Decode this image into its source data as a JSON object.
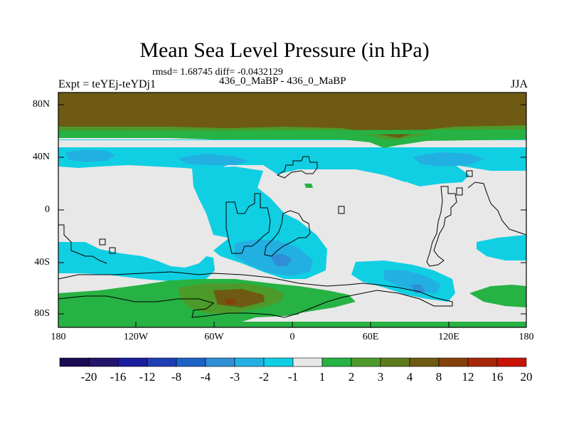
{
  "title": "Mean Sea Level Pressure (in hPa)",
  "stats": "rmsd= 1.68745 diff= -0.0432129",
  "experiment": "Expt = teYEj-teYDj1",
  "subtitle": "436_0_MaBP - 436_0_MaBP",
  "season": "JJA",
  "y_ticks": [
    "80N",
    "40N",
    "0",
    "40S",
    "80S"
  ],
  "x_ticks": [
    "180",
    "120W",
    "60W",
    "0",
    "60E",
    "120E",
    "180"
  ],
  "colorbar": {
    "labels": [
      "-20",
      "-16",
      "-12",
      "-8",
      "-4",
      "-3",
      "-2",
      "-1",
      "1",
      "2",
      "3",
      "4",
      "8",
      "12",
      "16",
      "20"
    ],
    "colors": [
      "#23136b",
      "#1c1c9e",
      "#1f3eb4",
      "#1e62c6",
      "#2f8fd6",
      "#22b0e2",
      "#10cfe3",
      "#e8e8e8",
      "#27b244",
      "#4c9a2a",
      "#5c7a1c",
      "#6e5a12",
      "#86400b",
      "#a72708",
      "#c81406"
    ]
  },
  "legend_colors": {
    "bg": "#e8e8e8",
    "cyan": "#10cfe3",
    "sky": "#22b0e2",
    "blue": "#2f8fd6",
    "green": "#27b244",
    "olive": "#4c9a2a",
    "brown": "#6e5a12",
    "rust": "#86400b"
  }
}
